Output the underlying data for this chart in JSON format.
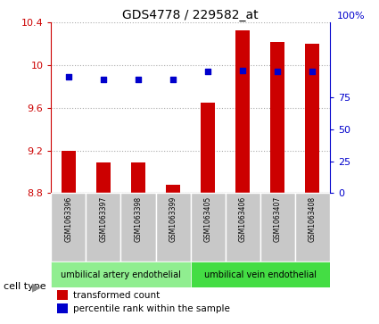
{
  "title": "GDS4778 / 229582_at",
  "samples": [
    "GSM1063396",
    "GSM1063397",
    "GSM1063398",
    "GSM1063399",
    "GSM1063405",
    "GSM1063406",
    "GSM1063407",
    "GSM1063408"
  ],
  "transformed_counts": [
    9.2,
    9.09,
    9.09,
    8.88,
    9.65,
    10.33,
    10.22,
    10.2
  ],
  "percentile_ranks": [
    91,
    89,
    89,
    89,
    95,
    96,
    95,
    95
  ],
  "ylim_left": [
    8.8,
    10.4
  ],
  "yticks_left": [
    8.8,
    9.2,
    9.6,
    10.0,
    10.4
  ],
  "ytick_labels_left": [
    "8.8",
    "9.2",
    "9.6",
    "10",
    "10.4"
  ],
  "ylim_right": [
    0,
    133.33
  ],
  "yticks_right": [
    0,
    25,
    50,
    75
  ],
  "ytick_labels_right": [
    "0",
    "25",
    "50",
    "75"
  ],
  "bar_color": "#cc0000",
  "dot_color": "#0000cc",
  "bar_baseline": 8.8,
  "cell_type_groups": [
    {
      "label": "umbilical artery endothelial",
      "indices": [
        0,
        1,
        2,
        3
      ],
      "color": "#90ee90"
    },
    {
      "label": "umbilical vein endothelial",
      "indices": [
        4,
        5,
        6,
        7
      ],
      "color": "#44dd44"
    }
  ],
  "cell_type_label": "cell type",
  "legend_items": [
    {
      "color": "#cc0000",
      "label": "transformed count"
    },
    {
      "color": "#0000cc",
      "label": "percentile rank within the sample"
    }
  ],
  "grid_color": "#aaaaaa",
  "bg_color": "#ffffff",
  "plot_bg": "#ffffff",
  "tick_color_left": "#cc0000",
  "tick_color_right": "#0000cc",
  "sample_box_color": "#c8c8c8",
  "bar_width": 0.4
}
